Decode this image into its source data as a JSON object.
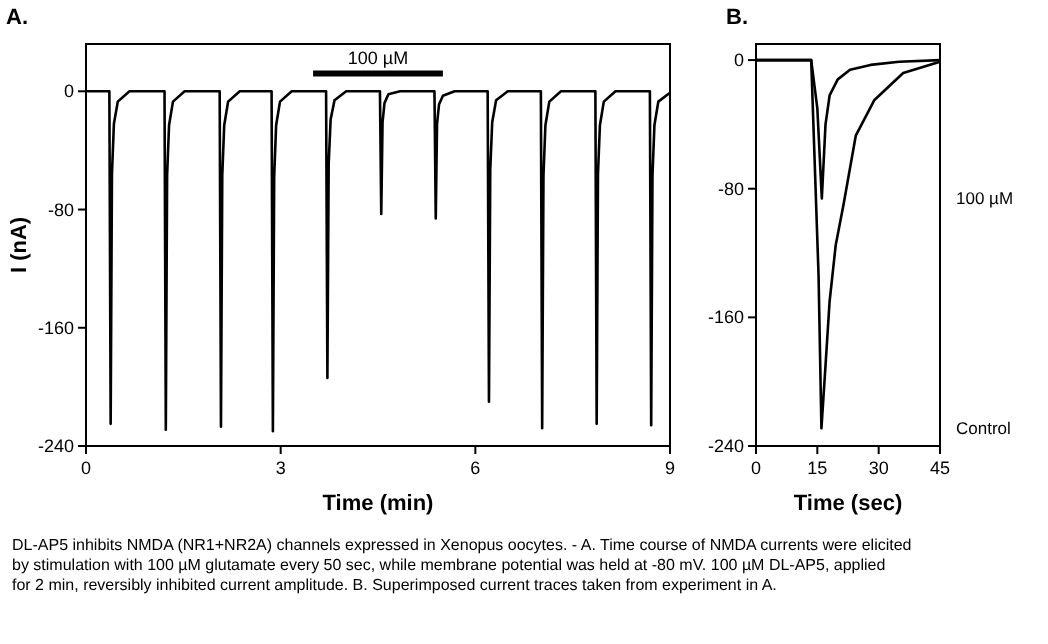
{
  "chart_data": [
    {
      "type": "line",
      "title": "A.",
      "xlabel": "Time (min)",
      "ylabel": "I (nA)",
      "xlim": [
        0,
        9
      ],
      "ylim": [
        -240,
        32
      ],
      "xticks": [
        0,
        3,
        6,
        9
      ],
      "yticks": [
        0,
        -80,
        -160,
        -240
      ],
      "annotations": [
        "DL-AP5 inhibits NMDA (NR1+NR2A) channels expressed in Xenopus oocytes. - A. Time course of NMDA currents were elicited by stimulation with 100 µM glutamate every 50 sec, while membrane potential was held at -80 mV. 100 µM DL-AP5, applied for 2 min, reversibly inhibited current amplitude. B. Superimposed current traces taken from experiment in A."
      ],
      "series": [
        {
          "color": "#000000",
          "x": [
            0,
            0.36,
            0.38,
            0.4,
            0.43,
            0.49,
            0.67,
            1.21,
            1.23,
            1.25,
            1.28,
            1.34,
            1.52,
            2.06,
            2.08,
            2.1,
            2.13,
            2.19,
            2.37,
            2.86,
            2.88,
            2.9,
            2.93,
            2.99,
            3.17,
            3.7,
            3.72,
            3.74,
            3.77,
            3.83,
            4.01,
            4.53,
            4.55,
            4.57,
            4.6,
            4.66,
            4.84,
            5.37,
            5.39,
            5.41,
            5.44,
            5.5,
            5.68,
            6.19,
            6.21,
            6.23,
            6.26,
            6.32,
            6.5,
            7.01,
            7.03,
            7.05,
            7.08,
            7.14,
            7.32,
            7.85,
            7.87,
            7.89,
            7.92,
            7.98,
            8.16,
            8.69,
            8.71,
            8.73,
            8.76,
            8.82,
            9.0
          ],
          "values": [
            0,
            0,
            -225,
            -56,
            -22,
            -7,
            0,
            0,
            -229,
            -57,
            -23,
            -7,
            0,
            0,
            -227,
            -57,
            -23,
            -7,
            0,
            0,
            -230,
            -58,
            -23,
            -7,
            0,
            0,
            -194,
            -49,
            -19,
            -6,
            0,
            0,
            -83,
            -21,
            -8,
            -2,
            0,
            0,
            -86,
            -22,
            -9,
            -3,
            0,
            0,
            -210,
            -53,
            -21,
            -6,
            0,
            0,
            -228,
            -57,
            -23,
            -7,
            0,
            0,
            -225,
            -56,
            -23,
            -7,
            0,
            0,
            -226,
            -57,
            -23,
            -7,
            -1
          ]
        },
        {
          "name": "100 µM",
          "color": "#000000",
          "x": [
            3.5,
            5.5
          ],
          "values": [
            12,
            12
          ]
        }
      ]
    },
    {
      "type": "line",
      "title": "B.",
      "xlabel": "Time (sec)",
      "xlim": [
        0,
        45
      ],
      "ylim": [
        -240,
        10
      ],
      "xticks": [
        0,
        15,
        30,
        45
      ],
      "yticks": [
        0,
        -80,
        -160,
        -240
      ],
      "series": [
        {
          "name": "100 µM",
          "color": "#000000",
          "x": [
            0,
            13.5,
            15,
            16.1,
            17,
            18,
            20,
            23,
            28,
            35,
            45
          ],
          "values": [
            0,
            0,
            -30,
            -86,
            -40,
            -22,
            -12,
            -6,
            -3,
            -1,
            0
          ]
        },
        {
          "name": "Control",
          "color": "#000000",
          "x": [
            0,
            13.5,
            15.3,
            16,
            17,
            18,
            19.5,
            21.4,
            24.4,
            28.9,
            36,
            45
          ],
          "values": [
            0,
            0,
            -134,
            -229,
            -190,
            -150,
            -115,
            -90,
            -47,
            -25,
            -8,
            -1
          ]
        }
      ]
    }
  ]
}
